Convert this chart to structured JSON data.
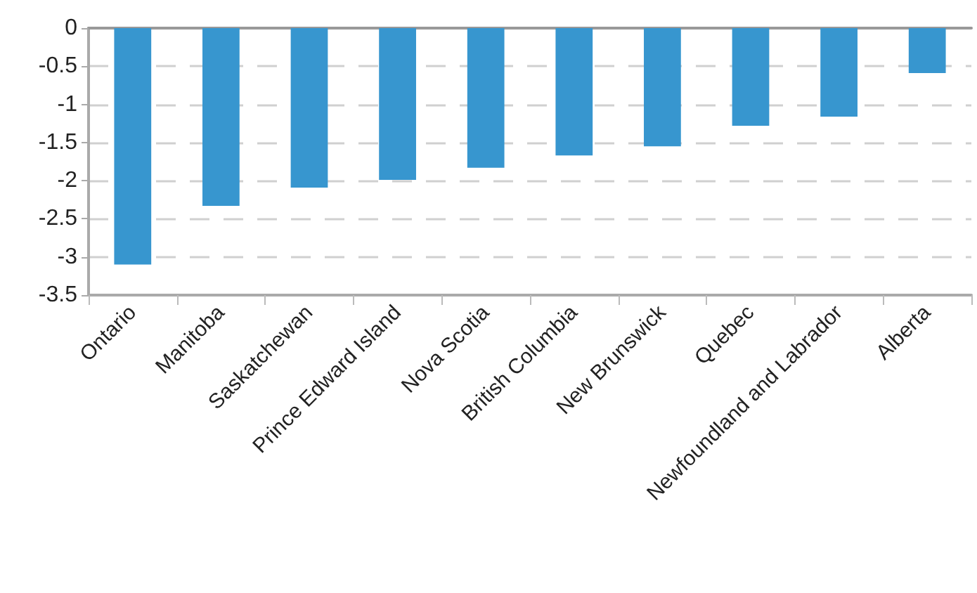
{
  "chart_data": {
    "type": "bar",
    "categories": [
      "Ontario",
      "Manitoba",
      "Saskatchewan",
      "Prince Edward Island",
      "Nova Scotia",
      "British Columbia",
      "New Brunswick",
      "Quebec",
      "Newfoundland and Labrador",
      "Alberta"
    ],
    "values": [
      -3.1,
      -2.33,
      -2.09,
      -1.99,
      -1.83,
      -1.67,
      -1.55,
      -1.28,
      -1.16,
      -0.59
    ],
    "color": "#3796cf",
    "ylim": [
      -3.5,
      0
    ],
    "yticks": [
      {
        "value": -3.5,
        "label": "-3.5"
      },
      {
        "value": -3,
        "label": "-3"
      },
      {
        "value": -2.5,
        "label": "-2.5"
      },
      {
        "value": -2,
        "label": "-2"
      },
      {
        "value": -1.5,
        "label": "-1.5"
      },
      {
        "value": -1,
        "label": "-1"
      },
      {
        "value": -0.5,
        "label": "-0.5"
      },
      {
        "value": 0,
        "label": "0"
      }
    ],
    "grid": "y"
  }
}
